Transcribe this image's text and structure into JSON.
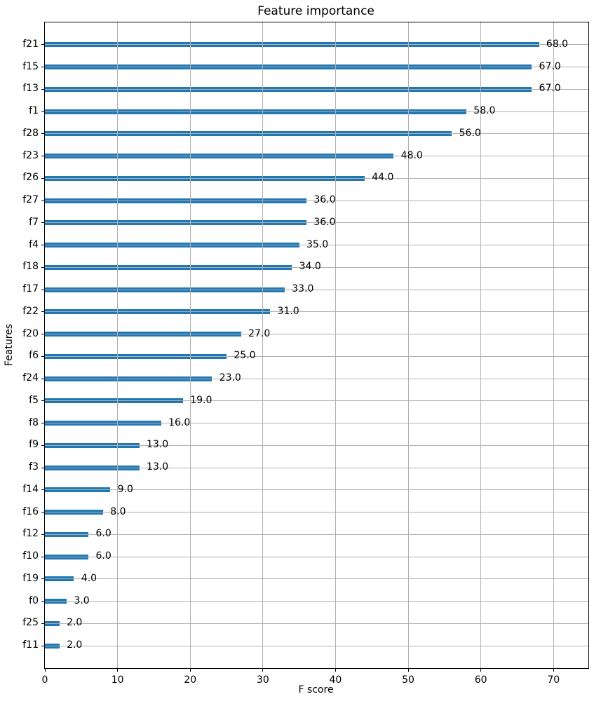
{
  "chart_data": {
    "type": "bar",
    "orientation": "horizontal",
    "title": "Feature importance",
    "xlabel": "F score",
    "ylabel": "Features",
    "categories": [
      "f21",
      "f15",
      "f13",
      "f1",
      "f28",
      "f23",
      "f26",
      "f27",
      "f7",
      "f4",
      "f18",
      "f17",
      "f22",
      "f20",
      "f6",
      "f24",
      "f5",
      "f8",
      "f9",
      "f3",
      "f14",
      "f16",
      "f12",
      "f10",
      "f19",
      "f0",
      "f25",
      "f11"
    ],
    "values": [
      68,
      67,
      67,
      58,
      56,
      48,
      44,
      36,
      36,
      35,
      34,
      33,
      31,
      27,
      25,
      23,
      19,
      16,
      13,
      13,
      9,
      8,
      6,
      6,
      4,
      3,
      2,
      2
    ],
    "bar_labels": [
      "68.0",
      "67.0",
      "67.0",
      "58.0",
      "56.0",
      "48.0",
      "44.0",
      "36.0",
      "36.0",
      "35.0",
      "34.0",
      "33.0",
      "31.0",
      "27.0",
      "25.0",
      "23.0",
      "19.0",
      "16.0",
      "13.0",
      "13.0",
      "9.0",
      "8.0",
      "6.0",
      "6.0",
      "4.0",
      "3.0",
      "2.0",
      "2.0"
    ],
    "x_ticks": [
      0,
      10,
      20,
      30,
      40,
      50,
      60,
      70
    ],
    "xlim": [
      0,
      74.8
    ],
    "grid": true,
    "legend": null,
    "bar_color": "#1f77b4",
    "grid_color": "#b0b0b0",
    "text_color": "#000000"
  }
}
